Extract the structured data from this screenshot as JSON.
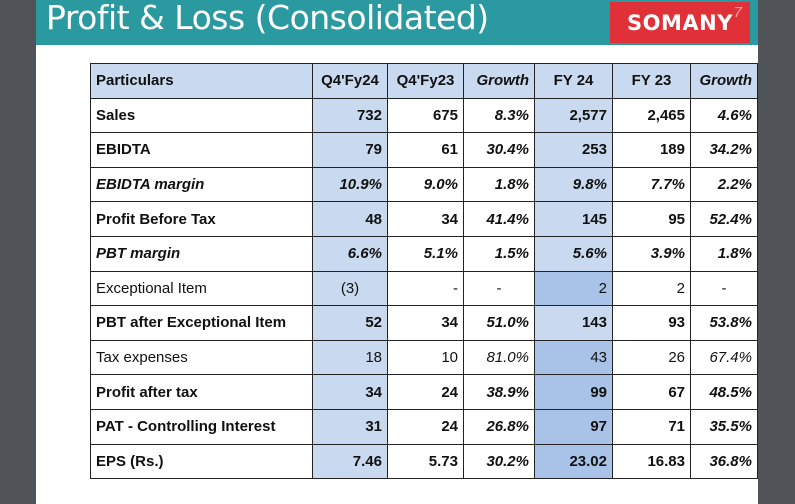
{
  "header": {
    "title": "Profit & Loss (Consolidated)",
    "logo_text": "SOMANY",
    "logo_mark": "7"
  },
  "table": {
    "columns": [
      "Particulars",
      "Q4'Fy24",
      "Q4'Fy23",
      "Growth",
      "FY 24",
      "FY 23",
      "Growth"
    ],
    "rows": [
      {
        "label": "Sales",
        "cells": [
          "732",
          "675",
          "8.3%",
          "2,577",
          "2,465",
          "4.6%"
        ]
      },
      {
        "label": "EBIDTA",
        "cells": [
          "79",
          "61",
          "30.4%",
          "253",
          "189",
          "34.2%"
        ]
      },
      {
        "label": "EBIDTA margin",
        "cells": [
          "10.9%",
          "9.0%",
          "1.8%",
          "9.8%",
          "7.7%",
          "2.2%"
        ]
      },
      {
        "label": "Profit Before Tax",
        "cells": [
          "48",
          "34",
          "41.4%",
          "145",
          "95",
          "52.4%"
        ]
      },
      {
        "label": "PBT margin",
        "cells": [
          "6.6%",
          "5.1%",
          "1.5%",
          "5.6%",
          "3.9%",
          "1.8%"
        ]
      },
      {
        "label": "Exceptional Item",
        "cells": [
          "(3)",
          "-",
          "-",
          "2",
          "2",
          "-"
        ]
      },
      {
        "label": "PBT after Exceptional Item",
        "cells": [
          "52",
          "34",
          "51.0%",
          "143",
          "93",
          "53.8%"
        ]
      },
      {
        "label": "Tax expenses",
        "cells": [
          "18",
          "10",
          "81.0%",
          "43",
          "26",
          "67.4%"
        ]
      },
      {
        "label": "Profit after tax",
        "cells": [
          "34",
          "24",
          "38.9%",
          "99",
          "67",
          "48.5%"
        ]
      },
      {
        "label": "PAT - Controlling Interest",
        "cells": [
          "31",
          "24",
          "26.8%",
          "97",
          "71",
          "35.5%"
        ]
      },
      {
        "label": "EPS (Rs.)",
        "cells": [
          "7.46",
          "5.73",
          "30.2%",
          "23.02",
          "16.83",
          "36.8%"
        ]
      }
    ]
  },
  "colors": {
    "header_bg": "#2a9aa0",
    "logo_bg": "#e03038",
    "column_shade": "#c9d9ef",
    "frame_bg": "#505358"
  }
}
